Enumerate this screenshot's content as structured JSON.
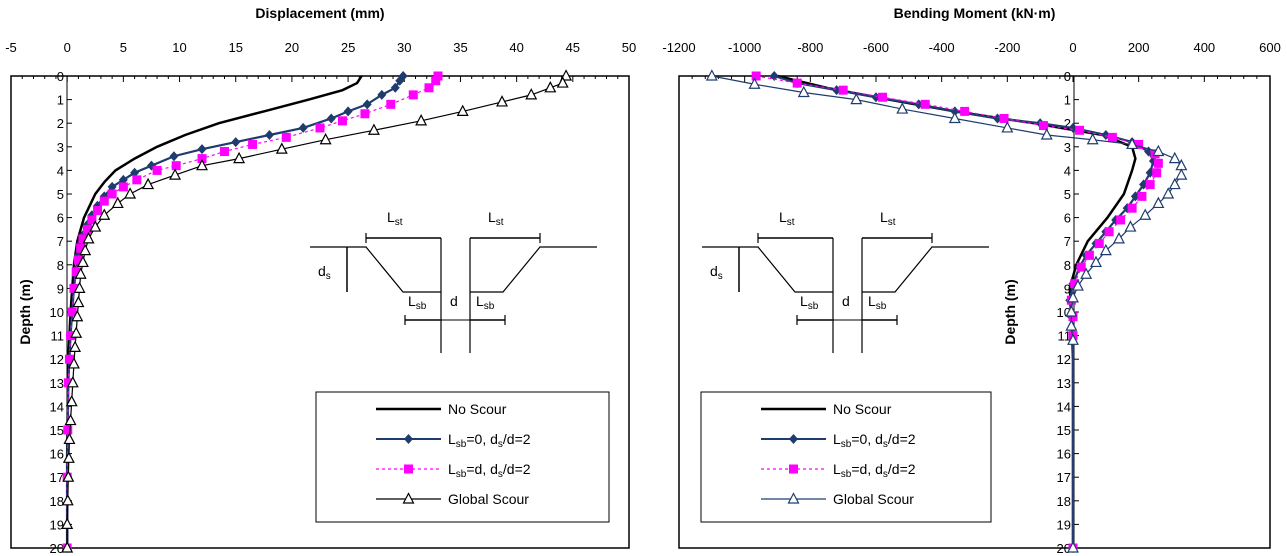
{
  "chart_data": [
    {
      "type": "line",
      "title": "Displacement (mm)",
      "xlabel": "Displacement (mm)",
      "ylabel": "Depth (m)",
      "xlim": [
        -5,
        50
      ],
      "ylim": [
        0,
        20
      ],
      "y_inverted": true,
      "x_axis_position": "top",
      "xticks": [
        -5,
        0,
        5,
        10,
        15,
        20,
        25,
        30,
        35,
        40,
        45,
        50
      ],
      "yticks": [
        0,
        1,
        2,
        3,
        4,
        5,
        6,
        7,
        8,
        9,
        10,
        11,
        12,
        13,
        14,
        15,
        16,
        17,
        18,
        19,
        20
      ],
      "legend_position": "bottom-right",
      "series": [
        {
          "name": "No Scour",
          "marker": "none",
          "color": "#000000",
          "points": [
            [
              26.2,
              0
            ],
            [
              25.8,
              0.3
            ],
            [
              24.5,
              0.6
            ],
            [
              21.5,
              1
            ],
            [
              17.5,
              1.5
            ],
            [
              13.5,
              2
            ],
            [
              10.5,
              2.5
            ],
            [
              8,
              3
            ],
            [
              6,
              3.5
            ],
            [
              4.3,
              4
            ],
            [
              3.3,
              4.5
            ],
            [
              2.5,
              5
            ],
            [
              2,
              5.5
            ],
            [
              1.5,
              6
            ],
            [
              1.2,
              6.5
            ],
            [
              0.9,
              7
            ],
            [
              0.6,
              8
            ],
            [
              0.45,
              9
            ],
            [
              0.3,
              10
            ],
            [
              0.2,
              11
            ],
            [
              0.1,
              12
            ],
            [
              0.05,
              14
            ],
            [
              0,
              16
            ],
            [
              0,
              20
            ]
          ]
        },
        {
          "name": "Lsb=0, ds/d=2",
          "marker": "diamond",
          "color": "#1f3c6e",
          "points": [
            [
              29.9,
              0
            ],
            [
              29.6,
              0.2
            ],
            [
              29.2,
              0.5
            ],
            [
              28,
              0.8
            ],
            [
              26.7,
              1.2
            ],
            [
              25,
              1.5
            ],
            [
              23.5,
              1.8
            ],
            [
              21,
              2.2
            ],
            [
              18,
              2.5
            ],
            [
              15,
              2.8
            ],
            [
              12,
              3.1
            ],
            [
              9.5,
              3.4
            ],
            [
              7.5,
              3.8
            ],
            [
              6,
              4.1
            ],
            [
              5,
              4.4
            ],
            [
              4,
              4.7
            ],
            [
              3.3,
              5.1
            ],
            [
              2.7,
              5.5
            ],
            [
              2.2,
              5.9
            ],
            [
              1.8,
              6.3
            ],
            [
              1.5,
              6.7
            ],
            [
              1.2,
              7.1
            ],
            [
              1,
              7.6
            ],
            [
              0.8,
              8.2
            ],
            [
              0.6,
              9
            ],
            [
              0.45,
              10
            ],
            [
              0.3,
              11
            ],
            [
              0.2,
              12
            ],
            [
              0.1,
              13
            ],
            [
              0.05,
              15
            ],
            [
              0,
              17
            ],
            [
              0,
              20
            ]
          ]
        },
        {
          "name": "Lsb=d, ds/d=2",
          "marker": "square",
          "color": "#ff00ff",
          "points": [
            [
              33,
              0
            ],
            [
              32.8,
              0.2
            ],
            [
              32.2,
              0.5
            ],
            [
              30.8,
              0.8
            ],
            [
              28.8,
              1.2
            ],
            [
              26.5,
              1.6
            ],
            [
              24.5,
              1.9
            ],
            [
              22.5,
              2.2
            ],
            [
              19.5,
              2.6
            ],
            [
              16.5,
              2.9
            ],
            [
              14,
              3.2
            ],
            [
              12,
              3.5
            ],
            [
              9.7,
              3.8
            ],
            [
              8,
              4
            ],
            [
              6.2,
              4.4
            ],
            [
              5,
              4.7
            ],
            [
              4,
              5
            ],
            [
              3.3,
              5.3
            ],
            [
              2.7,
              5.7
            ],
            [
              2.2,
              6.1
            ],
            [
              1.8,
              6.5
            ],
            [
              1.4,
              6.9
            ],
            [
              1.2,
              7.3
            ],
            [
              1,
              7.8
            ],
            [
              0.8,
              8.3
            ],
            [
              0.6,
              9
            ],
            [
              0.45,
              10
            ],
            [
              0.3,
              11
            ],
            [
              0.2,
              12
            ],
            [
              0.1,
              13
            ],
            [
              0.05,
              15
            ],
            [
              0,
              17
            ],
            [
              0,
              20
            ]
          ]
        },
        {
          "name": "Global Scour",
          "marker": "triangle",
          "color": "#000000",
          "points": [
            [
              44.4,
              0
            ],
            [
              44.1,
              0.3
            ],
            [
              43,
              0.5
            ],
            [
              41.3,
              0.8
            ],
            [
              38.7,
              1.1
            ],
            [
              35.2,
              1.5
            ],
            [
              31.5,
              1.9
            ],
            [
              27.3,
              2.3
            ],
            [
              23,
              2.7
            ],
            [
              19.1,
              3.1
            ],
            [
              15.3,
              3.5
            ],
            [
              12,
              3.8
            ],
            [
              9.6,
              4.2
            ],
            [
              7.2,
              4.6
            ],
            [
              5.6,
              5
            ],
            [
              4.5,
              5.4
            ],
            [
              3.3,
              5.9
            ],
            [
              2.5,
              6.4
            ],
            [
              1.9,
              6.9
            ],
            [
              1.6,
              7.4
            ],
            [
              1.4,
              7.9
            ],
            [
              1.2,
              8.4
            ],
            [
              1.1,
              9
            ],
            [
              1,
              9.6
            ],
            [
              0.9,
              10.2
            ],
            [
              0.8,
              10.9
            ],
            [
              0.7,
              11.5
            ],
            [
              0.6,
              12.2
            ],
            [
              0.5,
              13
            ],
            [
              0.4,
              13.8
            ],
            [
              0.3,
              14.6
            ],
            [
              0.2,
              15.4
            ],
            [
              0.15,
              16.2
            ],
            [
              0.1,
              17
            ],
            [
              0.05,
              18
            ],
            [
              0,
              19
            ],
            [
              0,
              20
            ]
          ]
        }
      ]
    },
    {
      "type": "line",
      "title": "Bending Moment (kN·m)",
      "xlabel": "Bending Moment (kN·m)",
      "ylabel": "Depth (m)",
      "xlim": [
        -1200,
        600
      ],
      "ylim": [
        0,
        20
      ],
      "y_inverted": true,
      "x_axis_position": "top",
      "xticks": [
        -1200,
        -1000,
        -800,
        -600,
        -400,
        -200,
        0,
        200,
        400,
        600
      ],
      "yticks": [
        0,
        1,
        2,
        3,
        4,
        5,
        6,
        7,
        8,
        9,
        10,
        11,
        12,
        13,
        14,
        15,
        16,
        17,
        18,
        19,
        20
      ],
      "legend_position": "bottom-left",
      "series": [
        {
          "name": "No Scour",
          "marker": "none",
          "color": "#000000",
          "points": [
            [
              -900,
              0
            ],
            [
              -750,
              0.5
            ],
            [
              -560,
              1
            ],
            [
              -360,
              1.5
            ],
            [
              -120,
              2
            ],
            [
              90,
              2.5
            ],
            [
              180,
              3
            ],
            [
              190,
              3.5
            ],
            [
              180,
              4
            ],
            [
              155,
              5
            ],
            [
              105,
              6
            ],
            [
              45,
              7
            ],
            [
              10,
              8
            ],
            [
              -10,
              9
            ],
            [
              -5,
              10
            ],
            [
              0,
              12
            ],
            [
              0,
              20
            ]
          ]
        },
        {
          "name": "Lsb=0, ds/d=2",
          "marker": "diamond",
          "color": "#1f3c6e",
          "points": [
            [
              -910,
              0
            ],
            [
              -840,
              0.3
            ],
            [
              -720,
              0.6
            ],
            [
              -600,
              0.9
            ],
            [
              -470,
              1.2
            ],
            [
              -360,
              1.5
            ],
            [
              -230,
              1.8
            ],
            [
              -100,
              2
            ],
            [
              0,
              2.2
            ],
            [
              100,
              2.5
            ],
            [
              180,
              2.8
            ],
            [
              230,
              3.2
            ],
            [
              245,
              3.6
            ],
            [
              235,
              4.1
            ],
            [
              215,
              4.6
            ],
            [
              190,
              5.1
            ],
            [
              165,
              5.6
            ],
            [
              130,
              6.1
            ],
            [
              100,
              6.6
            ],
            [
              70,
              7.1
            ],
            [
              40,
              7.6
            ],
            [
              20,
              8.1
            ],
            [
              0,
              8.8
            ],
            [
              -10,
              9.5
            ],
            [
              -5,
              10.2
            ],
            [
              0,
              11
            ],
            [
              0,
              20
            ]
          ]
        },
        {
          "name": "Lsb=d, ds/d=2",
          "marker": "square",
          "color": "#ff00ff",
          "points": [
            [
              -965,
              0
            ],
            [
              -840,
              0.3
            ],
            [
              -700,
              0.6
            ],
            [
              -580,
              0.9
            ],
            [
              -450,
              1.2
            ],
            [
              -330,
              1.5
            ],
            [
              -210,
              1.8
            ],
            [
              -90,
              2.1
            ],
            [
              20,
              2.3
            ],
            [
              120,
              2.6
            ],
            [
              200,
              2.9
            ],
            [
              250,
              3.3
            ],
            [
              260,
              3.7
            ],
            [
              255,
              4.1
            ],
            [
              235,
              4.6
            ],
            [
              210,
              5.1
            ],
            [
              180,
              5.6
            ],
            [
              145,
              6.1
            ],
            [
              110,
              6.6
            ],
            [
              80,
              7.1
            ],
            [
              50,
              7.6
            ],
            [
              25,
              8.1
            ],
            [
              5,
              8.8
            ],
            [
              -5,
              9.5
            ],
            [
              0,
              10.2
            ],
            [
              0,
              11
            ],
            [
              0,
              20
            ]
          ]
        },
        {
          "name": "Global Scour",
          "marker": "triangle",
          "color": "#1f3c6e",
          "points": [
            [
              -1100,
              0
            ],
            [
              -970,
              0.35
            ],
            [
              -820,
              0.7
            ],
            [
              -660,
              1
            ],
            [
              -520,
              1.4
            ],
            [
              -360,
              1.8
            ],
            [
              -200,
              2.2
            ],
            [
              -80,
              2.5
            ],
            [
              60,
              2.7
            ],
            [
              180,
              2.9
            ],
            [
              260,
              3.2
            ],
            [
              310,
              3.5
            ],
            [
              330,
              3.8
            ],
            [
              330,
              4.2
            ],
            [
              310,
              4.6
            ],
            [
              290,
              5
            ],
            [
              260,
              5.4
            ],
            [
              220,
              5.9
            ],
            [
              175,
              6.4
            ],
            [
              140,
              6.9
            ],
            [
              100,
              7.4
            ],
            [
              70,
              7.9
            ],
            [
              40,
              8.4
            ],
            [
              15,
              8.9
            ],
            [
              0,
              9.4
            ],
            [
              -5,
              10
            ],
            [
              -5,
              10.6
            ],
            [
              0,
              11.2
            ],
            [
              0,
              20
            ]
          ]
        }
      ]
    }
  ],
  "legend_labels": [
    {
      "main": "No Scour"
    },
    {
      "pre": "L",
      "sub1": "sb",
      "mid": "=0, d",
      "sub2": "s",
      "post": "/d=2"
    },
    {
      "pre": "L",
      "sub1": "sb",
      "mid": "=d, d",
      "sub2": "s",
      "post": "/d=2"
    },
    {
      "main": "Global Scour"
    }
  ],
  "inset": {
    "lst": "L",
    "lst_sub": "st",
    "ds": "d",
    "ds_sub": "s",
    "lsb": "L",
    "lsb_sub": "sb",
    "d": "d"
  }
}
